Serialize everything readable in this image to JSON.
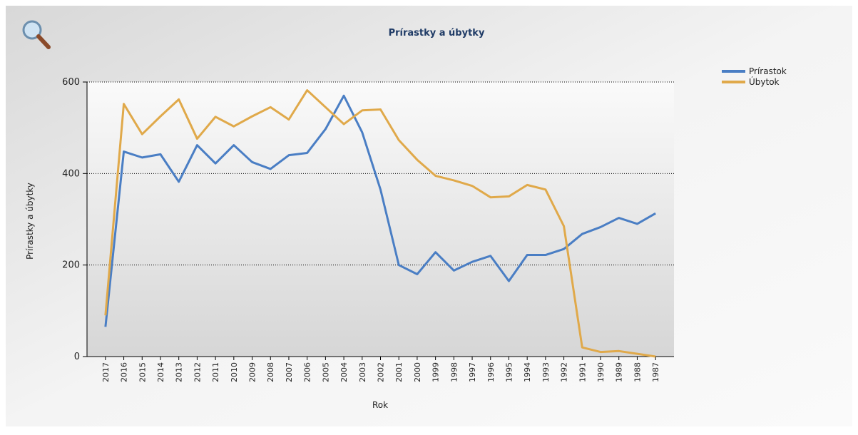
{
  "chart_data": {
    "type": "line",
    "title": "Prírastky a úbytky",
    "x_label": "Rok",
    "y_label": "Prírastky a úbytky",
    "categories": [
      "2017",
      "2016",
      "2015",
      "2014",
      "2013",
      "2012",
      "2011",
      "2010",
      "2009",
      "2008",
      "2007",
      "2006",
      "2005",
      "2004",
      "2003",
      "2002",
      "2001",
      "2000",
      "1999",
      "1998",
      "1997",
      "1996",
      "1995",
      "1994",
      "1993",
      "1992",
      "1991",
      "1990",
      "1989",
      "1988",
      "1987"
    ],
    "series": [
      {
        "name": "Prírastok",
        "color": "#4a7ec4",
        "values": [
          65,
          448,
          435,
          442,
          382,
          462,
          422,
          462,
          425,
          410,
          440,
          445,
          497,
          570,
          490,
          365,
          200,
          180,
          228,
          188,
          207,
          220,
          165,
          222,
          222,
          235,
          268,
          283,
          303,
          290,
          313
        ]
      },
      {
        "name": "Úbytok",
        "color": "#e0a94a",
        "values": [
          90,
          552,
          486,
          525,
          562,
          476,
          524,
          503,
          525,
          545,
          518,
          582,
          545,
          508,
          538,
          540,
          473,
          430,
          395,
          385,
          373,
          348,
          350,
          375,
          365,
          285,
          20,
          10,
          12,
          6,
          0
        ]
      }
    ],
    "ylim": [
      0,
      600
    ],
    "yticks": [
      0,
      200,
      400,
      600
    ],
    "grid": true,
    "legend": "top-right"
  }
}
